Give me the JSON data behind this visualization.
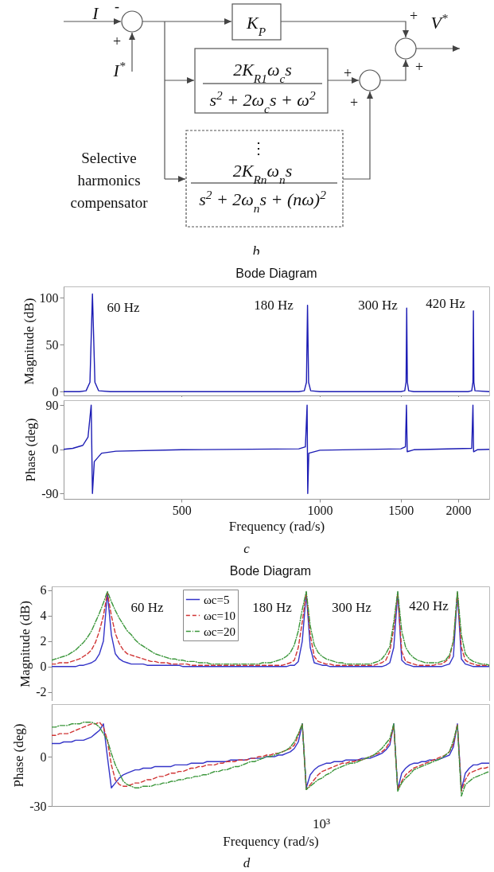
{
  "chart_data": [
    {
      "type": "other",
      "annotations": [
        "I",
        "-",
        "+",
        "I$^{*}$",
        "K$_{P}$",
        "+",
        "V$^{*}$",
        "+",
        "+",
        "+",
        "2K$_{R1}$ω$_{c}$s",
        "s$^{2}$ + 2ω$_{c}$s + ω$^{2}$",
        "⋮",
        "2K$_{Rn}$ω$_{n}$s",
        "s$^{2}$ + 2ω$_{n}$s + (nω)$^{2}$",
        "Selective harmonics compensator",
        "b"
      ]
    },
    {
      "type": "line",
      "title": "Bode Diagram",
      "ylabel": "Magnitude (dB)",
      "log": "x",
      "xlim": [
        277,
        2336
      ],
      "xticks": [
        500,
        1000,
        1500,
        2000
      ],
      "ylim": [
        -4,
        112
      ],
      "yticks": [
        0,
        50,
        100
      ],
      "tick_labels": "y",
      "series": [
        {
          "color": "#1c1cb4",
          "line_style": "solid",
          "x": [
            277,
            300,
            310,
            316,
            320,
            324,
            330,
            350,
            600,
            900,
            925,
            935,
            940,
            945,
            955,
            1000,
            1300,
            1500,
            1530,
            1540,
            1545,
            1550,
            1560,
            1600,
            1900,
            2100,
            2140,
            2153,
            2158,
            2163,
            2175,
            2336
          ],
          "values": [
            0,
            0,
            1,
            10,
            104,
            10,
            1,
            0,
            0,
            0,
            1,
            10,
            92,
            10,
            1,
            0,
            0,
            0,
            1,
            10,
            89,
            10,
            1,
            0,
            0,
            0,
            1,
            10,
            86,
            10,
            1,
            0
          ]
        }
      ],
      "annotations": [
        "60 Hz",
        "180 Hz",
        "300 Hz",
        "420 Hz"
      ]
    },
    {
      "type": "line",
      "xlabel": "Frequency (rad/s)",
      "ylabel": "Phase (deg)",
      "log": "x",
      "xlim": [
        277,
        2336
      ],
      "xticks": [
        500,
        1000,
        1500,
        2000
      ],
      "ylim": [
        -101,
        100
      ],
      "yticks": [
        -90,
        0,
        90
      ],
      "series": [
        {
          "color": "#1c1cb4",
          "line_style": "solid",
          "x": [
            277,
            290,
            305,
            313,
            318,
            320,
            323,
            335,
            360,
            500,
            900,
            930,
            938,
            941,
            946,
            1000,
            1500,
            1535,
            1543,
            1549,
            1600,
            2140,
            2153,
            2160,
            2200,
            2336
          ],
          "values": [
            0,
            2,
            8,
            25,
            90,
            -90,
            -25,
            -8,
            -4,
            -1,
            1,
            5,
            90,
            -90,
            -8,
            -2,
            1,
            5,
            90,
            -5,
            -1,
            2,
            90,
            -5,
            -1,
            0
          ]
        }
      ],
      "annotations": [
        "c"
      ]
    },
    {
      "type": "line",
      "title": "Bode Diagram",
      "ylabel": "Magnitude (dB)",
      "categories": [
        null,
        null,
        null,
        null,
        null,
        null,
        null,
        null,
        null,
        null,
        null,
        null,
        null,
        null,
        null,
        null,
        null,
        null,
        null,
        null,
        null,
        null,
        null,
        null,
        null,
        null,
        null,
        null,
        null,
        null,
        null,
        null,
        null,
        null,
        null,
        null,
        null,
        null,
        null,
        null,
        null,
        null,
        null,
        null,
        null,
        null,
        null,
        null,
        null,
        null,
        null,
        null,
        null,
        null,
        null,
        null,
        null,
        null,
        null,
        null,
        null,
        null,
        null,
        null,
        null,
        null,
        null,
        null,
        null,
        null,
        null,
        null,
        null,
        null,
        null,
        null,
        null,
        null,
        null,
        null,
        null,
        null,
        null,
        null,
        null,
        null,
        null,
        null,
        null,
        null,
        null,
        null,
        null,
        null,
        null,
        null,
        null,
        null,
        null,
        null,
        null,
        null,
        null,
        null,
        null,
        null,
        null,
        null,
        null,
        null,
        null
      ],
      "ylim": [
        -2.7,
        6.3
      ],
      "yticks": [
        -2,
        0,
        2,
        4,
        6
      ],
      "legend": "top",
      "series": [
        {
          "name": "ωc=5",
          "color": "#3434c8",
          "line_style": "solid",
          "values": [
            0,
            0,
            0,
            0,
            0,
            0,
            0,
            0.1,
            0.1,
            0.2,
            0.3,
            0.5,
            1,
            2,
            5.8,
            2.5,
            1,
            0.6,
            0.4,
            0.3,
            0.2,
            0.2,
            0.2,
            0.2,
            0.1,
            0.1,
            0.1,
            0.1,
            0.1,
            0.1,
            0.1,
            0.1,
            0.1,
            0,
            0,
            0,
            0,
            0,
            0,
            0,
            0,
            0,
            0,
            0,
            0,
            0,
            0,
            0,
            0,
            0,
            0,
            0,
            0,
            0,
            0,
            0,
            0,
            0,
            0,
            0,
            0.1,
            0.1,
            0.4,
            2,
            5.8,
            1.5,
            0.3,
            0.2,
            0.1,
            0.1,
            0,
            0,
            0,
            0,
            0,
            0,
            0,
            0,
            0,
            0,
            0,
            0,
            0,
            0,
            0.1,
            0.3,
            1.5,
            5.8,
            0.5,
            0.2,
            0.1,
            0,
            0,
            0,
            0,
            0,
            0,
            0,
            0,
            0.1,
            0.2,
            0.8,
            5.8,
            0.6,
            0.2,
            0.1,
            0,
            0,
            0,
            0,
            0
          ]
        },
        {
          "name": "ωc=10",
          "color": "#d03434",
          "line_style": "dashed",
          "values": [
            0.2,
            0.2,
            0.3,
            0.3,
            0.3,
            0.4,
            0.5,
            0.6,
            0.8,
            1,
            1.3,
            1.9,
            2.8,
            4,
            5.8,
            4,
            2.6,
            1.8,
            1.3,
            1,
            0.9,
            0.8,
            0.7,
            0.6,
            0.5,
            0.4,
            0.4,
            0.3,
            0.3,
            0.3,
            0.2,
            0.2,
            0.2,
            0.2,
            0.2,
            0.1,
            0.1,
            0.1,
            0.1,
            0.1,
            0.1,
            0.1,
            0.1,
            0.1,
            0.1,
            0.1,
            0.1,
            0.1,
            0.1,
            0.1,
            0.1,
            0.1,
            0.1,
            0.1,
            0.1,
            0.1,
            0.1,
            0.1,
            0.1,
            0.2,
            0.3,
            0.5,
            1.5,
            3.5,
            5.8,
            2.5,
            0.8,
            0.4,
            0.3,
            0.2,
            0.2,
            0.1,
            0.1,
            0.1,
            0.1,
            0.1,
            0.1,
            0.1,
            0.1,
            0.1,
            0.1,
            0.1,
            0.2,
            0.3,
            0.5,
            1.2,
            3,
            5.8,
            1.2,
            0.4,
            0.3,
            0.2,
            0.1,
            0.1,
            0.1,
            0.1,
            0.1,
            0.2,
            0.2,
            0.4,
            0.7,
            2,
            5.8,
            1.5,
            0.5,
            0.3,
            0.2,
            0.1,
            0.1,
            0.1,
            0.1
          ]
        },
        {
          "name": "ωc=20",
          "color": "#3a963a",
          "line_style": "dotted",
          "values": [
            0.5,
            0.6,
            0.7,
            0.8,
            0.9,
            1.1,
            1.3,
            1.6,
            1.9,
            2.3,
            2.8,
            3.5,
            4.2,
            5,
            5.9,
            5.1,
            4.4,
            3.8,
            3.3,
            2.8,
            2.5,
            2.1,
            1.8,
            1.6,
            1.4,
            1.2,
            1,
            0.9,
            0.8,
            0.7,
            0.6,
            0.6,
            0.5,
            0.5,
            0.4,
            0.4,
            0.4,
            0.3,
            0.3,
            0.3,
            0.2,
            0.2,
            0.2,
            0.2,
            0.2,
            0.2,
            0.2,
            0.2,
            0.2,
            0.2,
            0.2,
            0.2,
            0.2,
            0.3,
            0.3,
            0.3,
            0.4,
            0.5,
            0.6,
            0.8,
            1.1,
            1.7,
            2.8,
            4.5,
            5.9,
            3.2,
            1.7,
            1.1,
            0.8,
            0.6,
            0.5,
            0.4,
            0.3,
            0.3,
            0.2,
            0.2,
            0.2,
            0.2,
            0.2,
            0.2,
            0.2,
            0.3,
            0.4,
            0.6,
            1,
            1.6,
            3.5,
            5.9,
            2.8,
            1.5,
            1,
            0.7,
            0.5,
            0.4,
            0.3,
            0.3,
            0.3,
            0.3,
            0.4,
            0.5,
            0.9,
            2,
            5.9,
            2.5,
            1,
            0.6,
            0.4,
            0.3,
            0.2,
            0.2,
            0.1
          ]
        }
      ],
      "annotations": [
        "60 Hz",
        "180 Hz",
        "300 Hz",
        "420 Hz"
      ]
    },
    {
      "type": "line",
      "xlabel": "Frequency (rad/s)",
      "ylabel": "Phase (deg)",
      "categories": [
        null,
        null,
        null,
        null,
        null,
        null,
        null,
        null,
        null,
        null,
        null,
        null,
        null,
        null,
        null,
        null,
        null,
        null,
        null,
        null,
        null,
        null,
        null,
        null,
        null,
        null,
        null,
        null,
        null,
        null,
        null,
        null,
        null,
        null,
        null,
        null,
        null,
        null,
        null,
        null,
        null,
        null,
        null,
        null,
        null,
        null,
        null,
        null,
        null,
        null,
        null,
        null,
        null,
        null,
        null,
        null,
        null,
        null,
        null,
        null,
        null,
        null,
        null,
        null,
        null,
        null,
        null,
        null,
        null,
        null,
        null,
        null,
        null,
        null,
        null,
        null,
        null,
        null,
        null,
        null,
        null,
        null,
        null,
        null,
        null,
        null,
        null,
        null,
        null,
        null,
        null,
        null,
        null,
        null,
        null,
        null,
        null,
        null,
        null,
        null,
        null,
        null,
        null,
        null,
        null,
        null,
        null,
        null,
        null,
        null,
        null
      ],
      "ylim": [
        -30,
        32
      ],
      "yticks": [
        -30,
        0
      ],
      "series": [
        {
          "color": "#3434c8",
          "line_style": "solid",
          "values": [
            8,
            8,
            8,
            9,
            9,
            9,
            10,
            10,
            10,
            11,
            12,
            14,
            16,
            20,
            0,
            -19,
            -16,
            -13,
            -11,
            -10,
            -9,
            -8,
            -8,
            -7,
            -7,
            -7,
            -6,
            -6,
            -6,
            -6,
            -6,
            -5,
            -5,
            -5,
            -5,
            -4,
            -4,
            -4,
            -4,
            -3,
            -3,
            -3,
            -3,
            -3,
            -3,
            -2,
            -2,
            -2,
            -2,
            -2,
            -1,
            -1,
            -1,
            -1,
            0,
            0,
            0,
            1,
            1,
            2,
            3,
            5,
            9,
            20,
            -19,
            -11,
            -8,
            -6,
            -5,
            -4,
            -4,
            -3,
            -3,
            -3,
            -2,
            -2,
            -2,
            -2,
            -1,
            -1,
            -1,
            0,
            1,
            2,
            4,
            7,
            20,
            -20,
            -10,
            -7,
            -5,
            -4,
            -4,
            -3,
            -3,
            -2,
            -2,
            -2,
            -1,
            0,
            1,
            6,
            20,
            -20,
            -10,
            -7,
            -5,
            -5,
            -4,
            -4,
            -4
          ]
        },
        {
          "color": "#d03434",
          "line_style": "dashed",
          "values": [
            13,
            13,
            14,
            14,
            14,
            15,
            16,
            17,
            18,
            19,
            20,
            20,
            21,
            18,
            10,
            -5,
            -14,
            -17,
            -18,
            -18,
            -17,
            -16,
            -16,
            -15,
            -14,
            -14,
            -13,
            -12,
            -12,
            -11,
            -10,
            -10,
            -9,
            -9,
            -8,
            -7,
            -7,
            -6,
            -6,
            -5,
            -5,
            -5,
            -4,
            -4,
            -3,
            -3,
            -3,
            -2,
            -2,
            -2,
            -1,
            -1,
            0,
            0,
            1,
            1,
            2,
            2,
            3,
            4,
            5,
            7,
            13,
            20,
            -20,
            -17,
            -14,
            -11,
            -9,
            -8,
            -7,
            -6,
            -5,
            -4,
            -4,
            -3,
            -3,
            -2,
            -2,
            -1,
            0,
            1,
            2,
            3,
            5,
            9,
            19,
            -20,
            -15,
            -11,
            -9,
            -7,
            -6,
            -5,
            -4,
            -3,
            -2,
            -1,
            0,
            1,
            3,
            8,
            20,
            -21,
            -14,
            -10,
            -9,
            -8,
            -7,
            -7,
            -6
          ]
        },
        {
          "color": "#3a963a",
          "line_style": "dotted",
          "values": [
            18,
            18,
            19,
            19,
            19,
            20,
            20,
            20,
            21,
            21,
            21,
            20,
            18,
            14,
            10,
            2,
            -5,
            -10,
            -15,
            -17,
            -18,
            -19,
            -19,
            -18,
            -18,
            -18,
            -17,
            -17,
            -16,
            -16,
            -15,
            -15,
            -14,
            -14,
            -13,
            -13,
            -12,
            -12,
            -11,
            -11,
            -10,
            -9,
            -9,
            -8,
            -8,
            -7,
            -6,
            -6,
            -5,
            -4,
            -3,
            -3,
            -2,
            -1,
            0,
            0,
            1,
            2,
            3,
            4,
            6,
            9,
            14,
            20,
            -20,
            -18,
            -16,
            -14,
            -13,
            -11,
            -10,
            -8,
            -7,
            -6,
            -5,
            -4,
            -4,
            -3,
            -2,
            -1,
            0,
            1,
            3,
            5,
            8,
            11,
            20,
            -21,
            -16,
            -13,
            -11,
            -8,
            -7,
            -6,
            -5,
            -4,
            -3,
            -2,
            -1,
            1,
            3,
            10,
            19,
            -24,
            -17,
            -15,
            -13,
            -12,
            -11,
            -10,
            -9
          ]
        }
      ],
      "annotations": [
        "10³",
        "d"
      ]
    }
  ]
}
